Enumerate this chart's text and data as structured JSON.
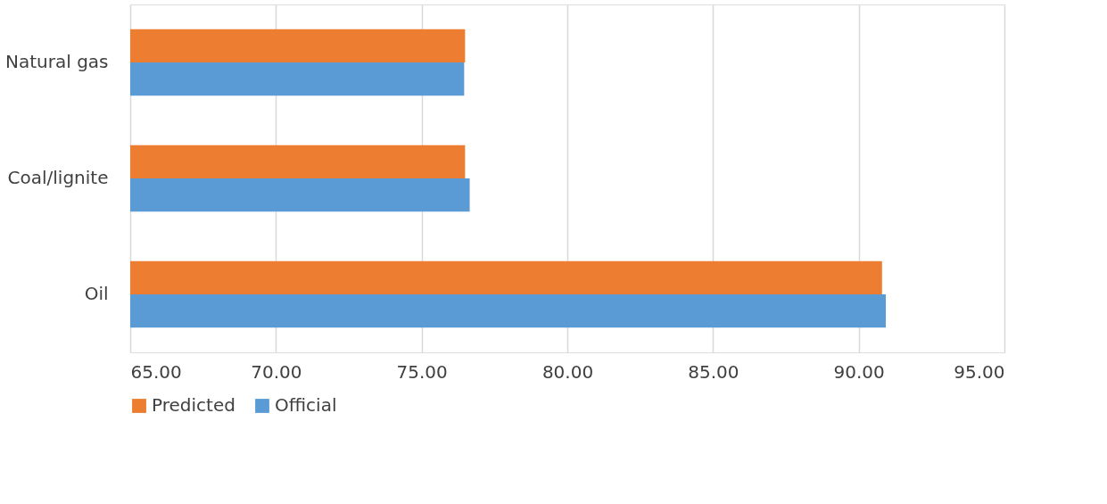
{
  "chart_data": {
    "type": "bar",
    "orientation": "horizontal",
    "categories": [
      "Natural gas",
      "Coal/lignite",
      "Oil"
    ],
    "series": [
      {
        "name": "Predicted",
        "color": "#ed7d31",
        "values": [
          76.49,
          76.49,
          90.8
        ]
      },
      {
        "name": "Official",
        "color": "#5b9bd5",
        "values": [
          76.46,
          76.65,
          90.93
        ]
      }
    ],
    "xlim": [
      65,
      95
    ],
    "xticks": [
      {
        "value": 65,
        "label": "65.00"
      },
      {
        "value": 70,
        "label": "70.00"
      },
      {
        "value": 75,
        "label": "75.00"
      },
      {
        "value": 80,
        "label": "80.00"
      },
      {
        "value": 85,
        "label": "85.00"
      },
      {
        "value": 90,
        "label": "90.00"
      },
      {
        "value": 95,
        "label": "95.00"
      }
    ],
    "grid": "x",
    "legend": "bottom"
  }
}
